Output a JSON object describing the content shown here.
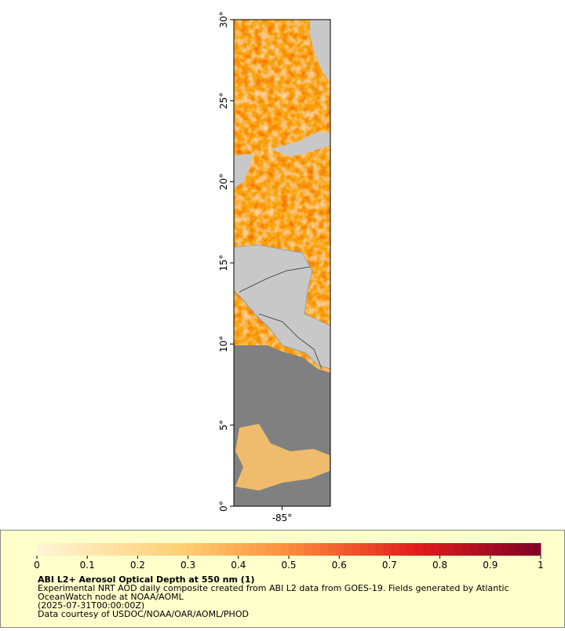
{
  "chart_data": {
    "type": "map",
    "ylim": [
      0,
      30
    ],
    "yticks": [
      {
        "value": 0,
        "label": "0°"
      },
      {
        "value": 5,
        "label": "5°"
      },
      {
        "value": 10,
        "label": "10°"
      },
      {
        "value": 15,
        "label": "15°"
      },
      {
        "value": 20,
        "label": "20°"
      },
      {
        "value": 25,
        "label": "25°"
      },
      {
        "value": 30,
        "label": "30°"
      }
    ],
    "xlim": [
      -88,
      -82
    ],
    "xticks": [
      {
        "value": -85,
        "label": "-85°"
      }
    ],
    "colorbar": {
      "range": [
        0,
        1
      ],
      "ticks": [
        0,
        0.1,
        0.2,
        0.3,
        0.4,
        0.5,
        0.6,
        0.7,
        0.8,
        0.9,
        1
      ]
    },
    "title": "ABI L2+ Aerosol Optical Depth at 550 nm (1)",
    "description": [
      "Experimental NRT AOD daily composite created from ABI L2 data from GOES-19. Fields generated by Atlantic",
      "OceanWatch node at NOAA/AOML",
      "(2025-07-31T00:00:00Z)",
      "Data courtesy of USDOC/NOAA/OAR/AOML/PHOD"
    ]
  }
}
